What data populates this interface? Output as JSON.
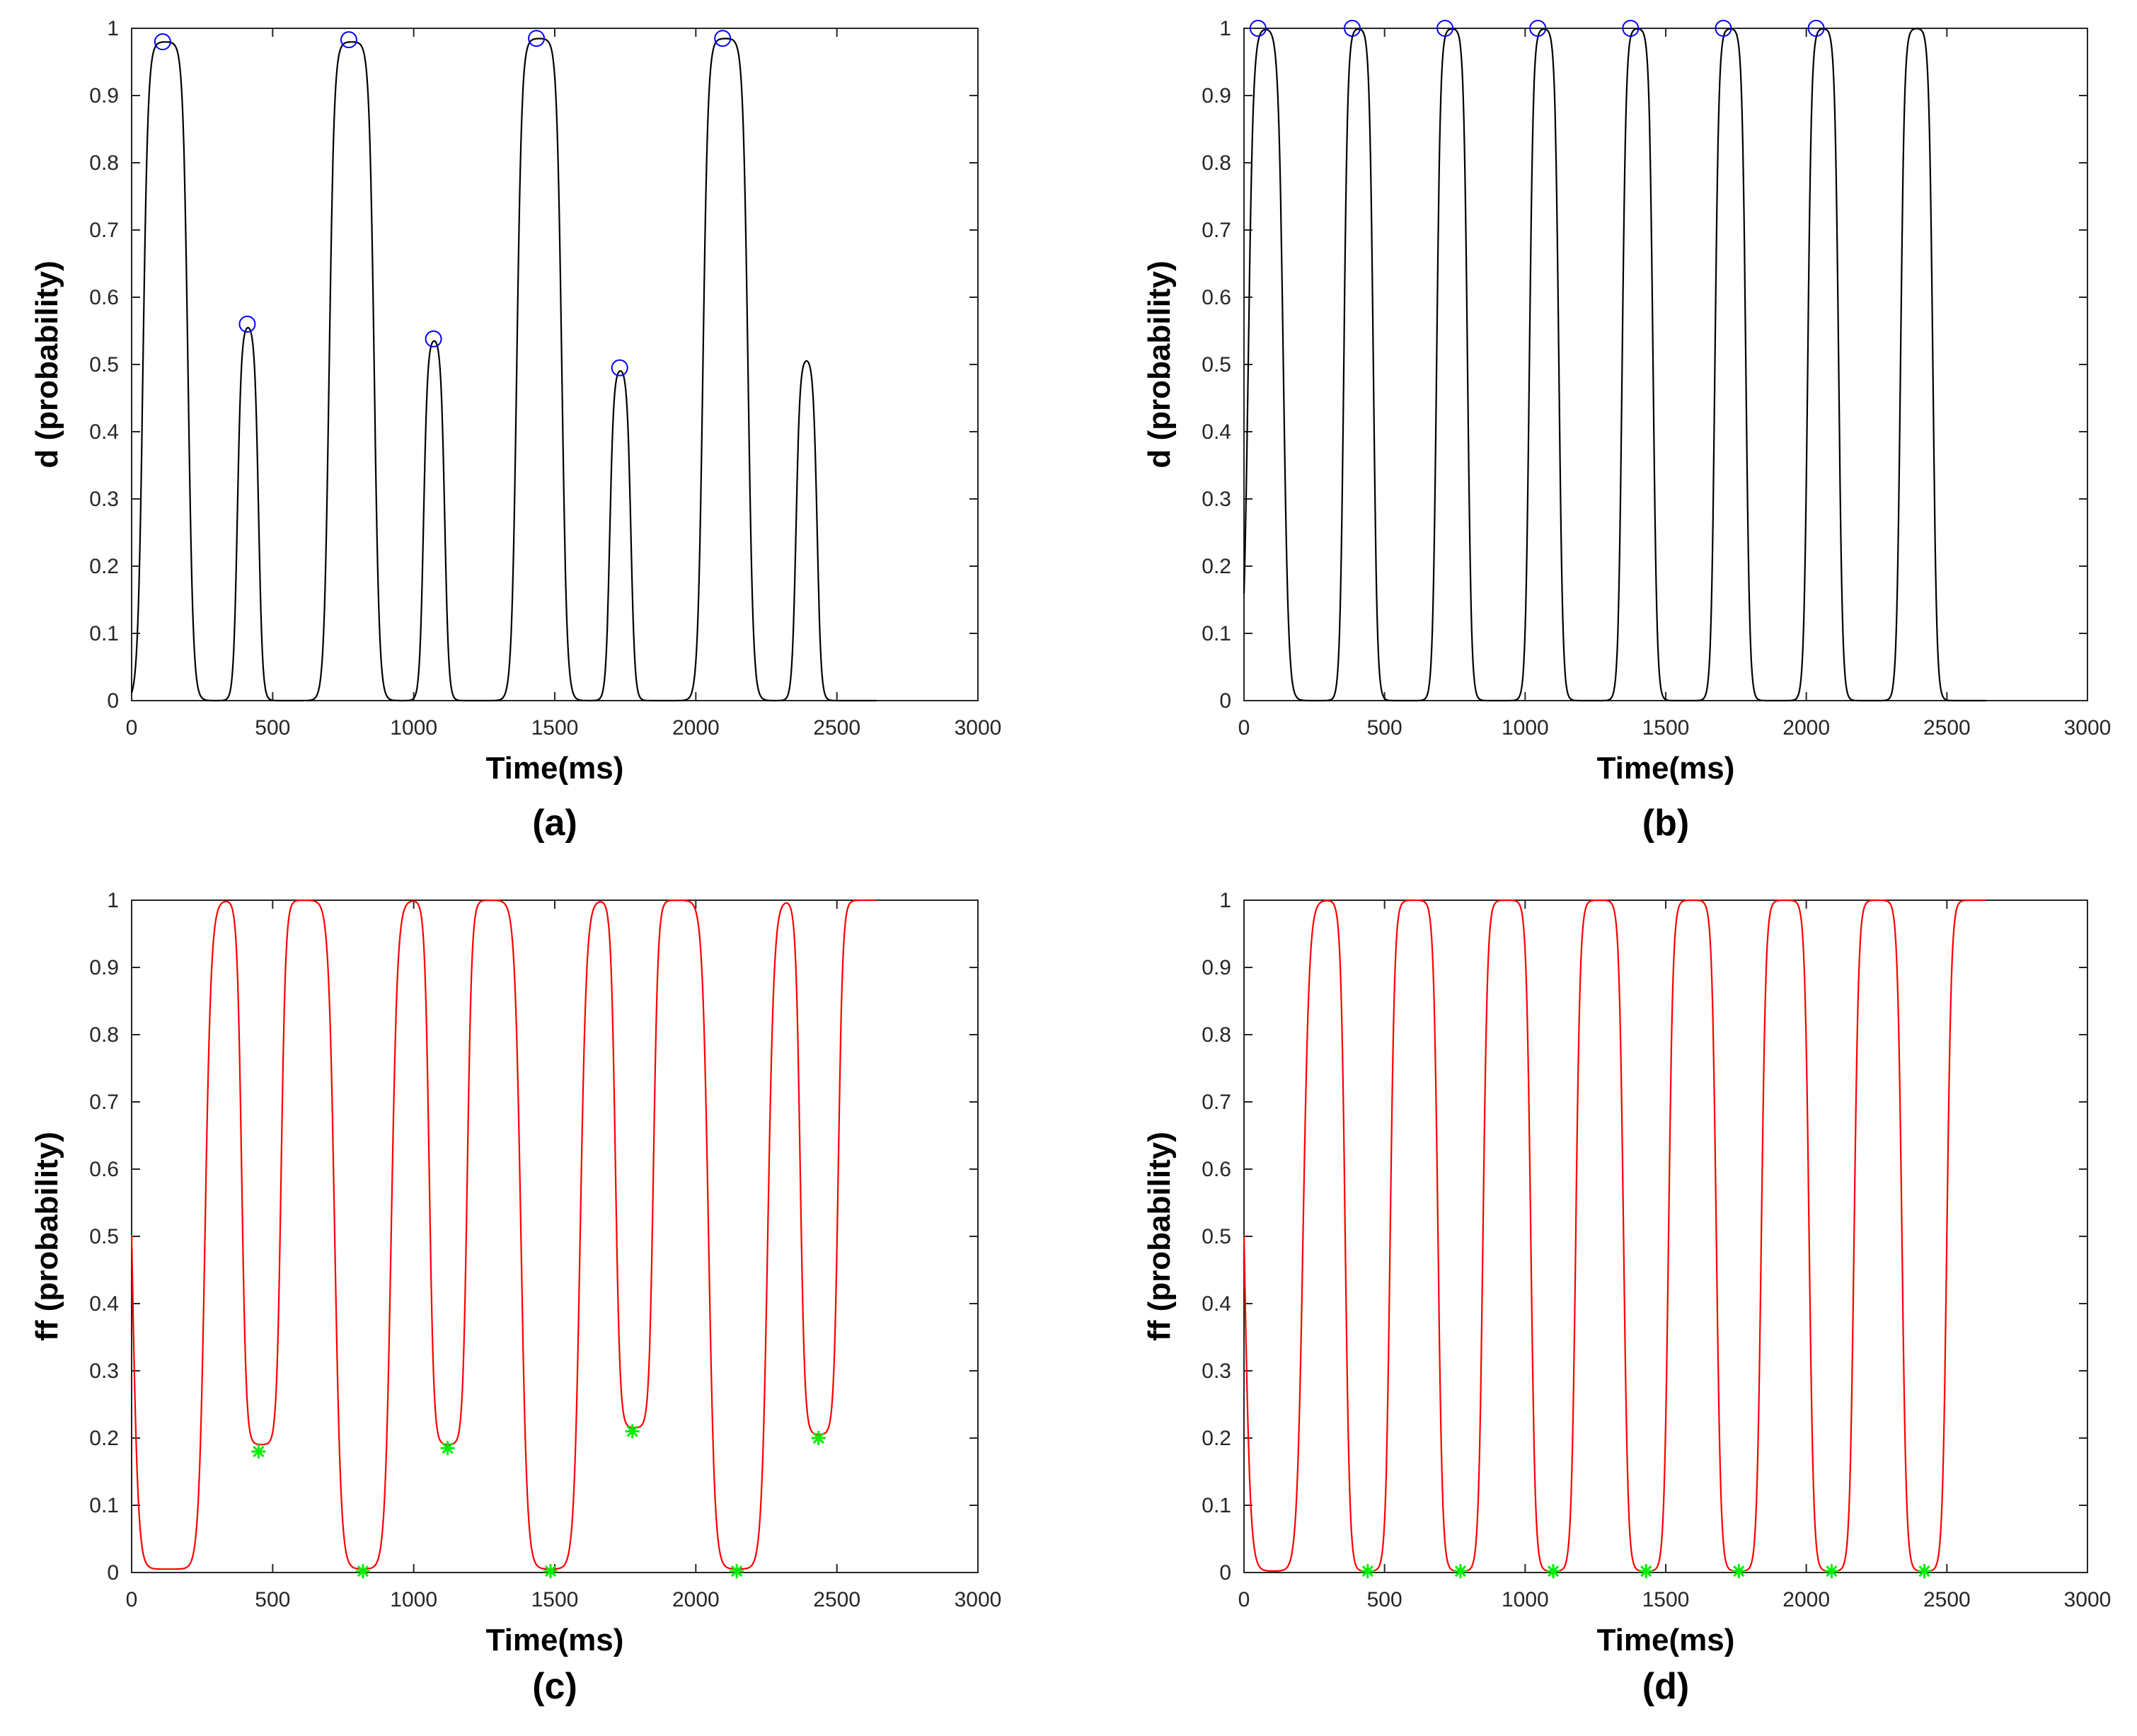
{
  "figure": {
    "panel_count": 4
  },
  "colors": {
    "axis": "#262626",
    "d_curve": "#000000",
    "d_peak_marker": "#0000ff",
    "ff_curve": "#ff0000",
    "ff_min_marker": "#00ee00"
  },
  "chart_data": [
    {
      "id": "a",
      "panel_label": "(a)",
      "type": "line",
      "xlabel": "Time(ms)",
      "ylabel": "d (probability)",
      "xlim": [
        0,
        3000
      ],
      "ylim": [
        0,
        1
      ],
      "xticks": [
        0,
        500,
        1000,
        1500,
        2000,
        2500,
        3000
      ],
      "yticks": [
        0,
        0.1,
        0.2,
        0.3,
        0.4,
        0.5,
        0.6,
        0.7,
        0.8,
        0.9,
        1
      ],
      "series": [
        {
          "name": "d",
          "color": "#000000",
          "baseline": 0,
          "pulses": [
            {
              "start": 40,
              "end": 200,
              "peak": 0.98
            },
            {
              "start": 375,
              "end": 450,
              "peak": 0.56
            },
            {
              "start": 700,
              "end": 860,
              "peak": 0.98
            },
            {
              "start": 1035,
              "end": 1110,
              "peak": 0.54
            },
            {
              "start": 1365,
              "end": 1525,
              "peak": 0.985
            },
            {
              "start": 1695,
              "end": 1770,
              "peak": 0.495
            },
            {
              "start": 2025,
              "end": 2185,
              "peak": 0.985
            },
            {
              "start": 2355,
              "end": 2430,
              "peak": 0.51
            }
          ],
          "x_end": 2640
        }
      ],
      "markers": {
        "name": "detected peaks",
        "shape": "circle",
        "color": "#0000ff",
        "points": [
          [
            110,
            0.98
          ],
          [
            410,
            0.56
          ],
          [
            770,
            0.983
          ],
          [
            1070,
            0.538
          ],
          [
            1435,
            0.985
          ],
          [
            1730,
            0.495
          ],
          [
            2095,
            0.985
          ]
        ]
      }
    },
    {
      "id": "b",
      "panel_label": "(b)",
      "type": "line",
      "xlabel": "Time(ms)",
      "ylabel": "d (probability)",
      "xlim": [
        0,
        3000
      ],
      "ylim": [
        0,
        1
      ],
      "xticks": [
        0,
        500,
        1000,
        1500,
        2000,
        2500,
        3000
      ],
      "yticks": [
        0,
        0.1,
        0.2,
        0.3,
        0.4,
        0.5,
        0.6,
        0.7,
        0.8,
        0.9,
        1
      ],
      "series": [
        {
          "name": "d",
          "color": "#000000",
          "baseline": 0,
          "pulses": [
            {
              "start": 15,
              "end": 140,
              "peak": 1.0
            },
            {
              "start": 355,
              "end": 460,
              "peak": 1.0
            },
            {
              "start": 685,
              "end": 795,
              "peak": 1.0
            },
            {
              "start": 1015,
              "end": 1120,
              "peak": 1.0
            },
            {
              "start": 1345,
              "end": 1455,
              "peak": 1.0
            },
            {
              "start": 1675,
              "end": 1785,
              "peak": 1.0
            },
            {
              "start": 2005,
              "end": 2115,
              "peak": 1.0
            },
            {
              "start": 2335,
              "end": 2450,
              "peak": 1.0
            }
          ],
          "x_end": 2640
        }
      ],
      "markers": {
        "name": "detected peaks",
        "shape": "circle",
        "color": "#0000ff",
        "points": [
          [
            50,
            1.0
          ],
          [
            385,
            1.0
          ],
          [
            715,
            1.0
          ],
          [
            1045,
            1.0
          ],
          [
            1375,
            1.0
          ],
          [
            1705,
            1.0
          ],
          [
            2035,
            1.0
          ]
        ]
      }
    },
    {
      "id": "c",
      "panel_label": "(c)",
      "type": "line",
      "xlabel": "Time(ms)",
      "ylabel": "ff (probability)",
      "xlim": [
        0,
        3000
      ],
      "ylim": [
        0,
        1
      ],
      "xticks": [
        0,
        500,
        1000,
        1500,
        2000,
        2500,
        3000
      ],
      "yticks": [
        0,
        0.1,
        0.2,
        0.3,
        0.4,
        0.5,
        0.6,
        0.7,
        0.8,
        0.9,
        1
      ],
      "series": [
        {
          "name": "ff",
          "color": "#ff0000",
          "baseline": 1,
          "dips": [
            {
              "start": 0,
              "end": 260,
              "min": 0.005
            },
            {
              "start": 390,
              "end": 530,
              "min": 0.19
            },
            {
              "start": 720,
              "end": 920,
              "min": 0.005
            },
            {
              "start": 1055,
              "end": 1190,
              "min": 0.19
            },
            {
              "start": 1380,
              "end": 1590,
              "min": 0.005
            },
            {
              "start": 1715,
              "end": 1850,
              "min": 0.215
            },
            {
              "start": 2045,
              "end": 2255,
              "min": 0.005
            },
            {
              "start": 2370,
              "end": 2505,
              "min": 0.205
            }
          ],
          "x_end": 2640
        }
      ],
      "markers": {
        "name": "detected minima",
        "shape": "asterisk",
        "color": "#00ee00",
        "points": [
          [
            450,
            0.18
          ],
          [
            820,
            0.002
          ],
          [
            1120,
            0.185
          ],
          [
            1485,
            0.002
          ],
          [
            1775,
            0.21
          ],
          [
            2145,
            0.002
          ],
          [
            2435,
            0.2
          ]
        ]
      }
    },
    {
      "id": "d",
      "panel_label": "(d)",
      "type": "line",
      "xlabel": "Time(ms)",
      "ylabel": "ff (probability)",
      "xlim": [
        0,
        3000
      ],
      "ylim": [
        0,
        1
      ],
      "xticks": [
        0,
        500,
        1000,
        1500,
        2000,
        2500,
        3000
      ],
      "yticks": [
        0,
        0.1,
        0.2,
        0.3,
        0.4,
        0.5,
        0.6,
        0.7,
        0.8,
        0.9,
        1
      ],
      "series": [
        {
          "name": "ff",
          "color": "#ff0000",
          "baseline": 1,
          "dips": [
            {
              "start": 0,
              "end": 210,
              "min": 0.002
            },
            {
              "start": 360,
              "end": 520,
              "min": 0.002
            },
            {
              "start": 690,
              "end": 850,
              "min": 0.002
            },
            {
              "start": 1020,
              "end": 1180,
              "min": 0.002
            },
            {
              "start": 1350,
              "end": 1510,
              "min": 0.002
            },
            {
              "start": 1680,
              "end": 1840,
              "min": 0.002
            },
            {
              "start": 2010,
              "end": 2170,
              "min": 0.002
            },
            {
              "start": 2340,
              "end": 2500,
              "min": 0.002
            }
          ],
          "x_end": 2640
        }
      ],
      "markers": {
        "name": "detected minima",
        "shape": "asterisk",
        "color": "#00ee00",
        "points": [
          [
            440,
            0.002
          ],
          [
            770,
            0.002
          ],
          [
            1100,
            0.002
          ],
          [
            1430,
            0.002
          ],
          [
            1760,
            0.002
          ],
          [
            2090,
            0.002
          ],
          [
            2420,
            0.002
          ]
        ]
      }
    }
  ]
}
